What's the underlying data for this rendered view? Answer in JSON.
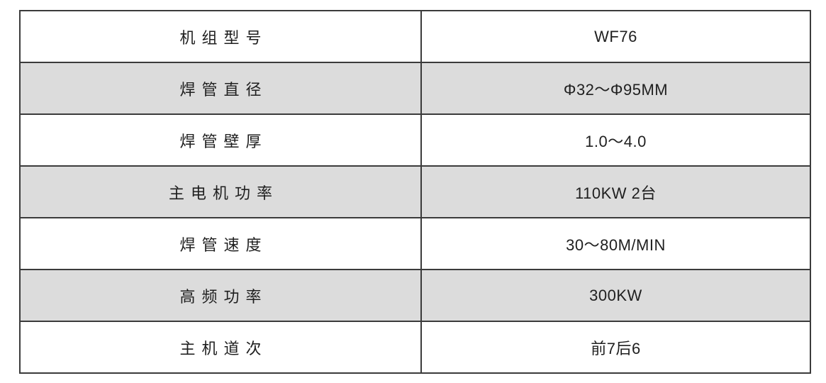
{
  "table": {
    "rows": [
      {
        "label": "机组型号",
        "value": "WF76"
      },
      {
        "label": "焊管直径",
        "value": "Φ32～Φ95MM"
      },
      {
        "label": "焊管壁厚",
        "value": "1.0～4.0"
      },
      {
        "label": "主电机功率",
        "value": "110KW 2台"
      },
      {
        "label": "焊管速度",
        "value": "30～80M/MIN"
      },
      {
        "label": "高频功率",
        "value": "300KW"
      },
      {
        "label": "主机道次",
        "value": "前7后6"
      }
    ],
    "colors": {
      "border": "#3b3b3b",
      "stripe_row_background": "#dcdcdc",
      "text": "#1f1f1f",
      "page_background": "#ffffff"
    }
  }
}
